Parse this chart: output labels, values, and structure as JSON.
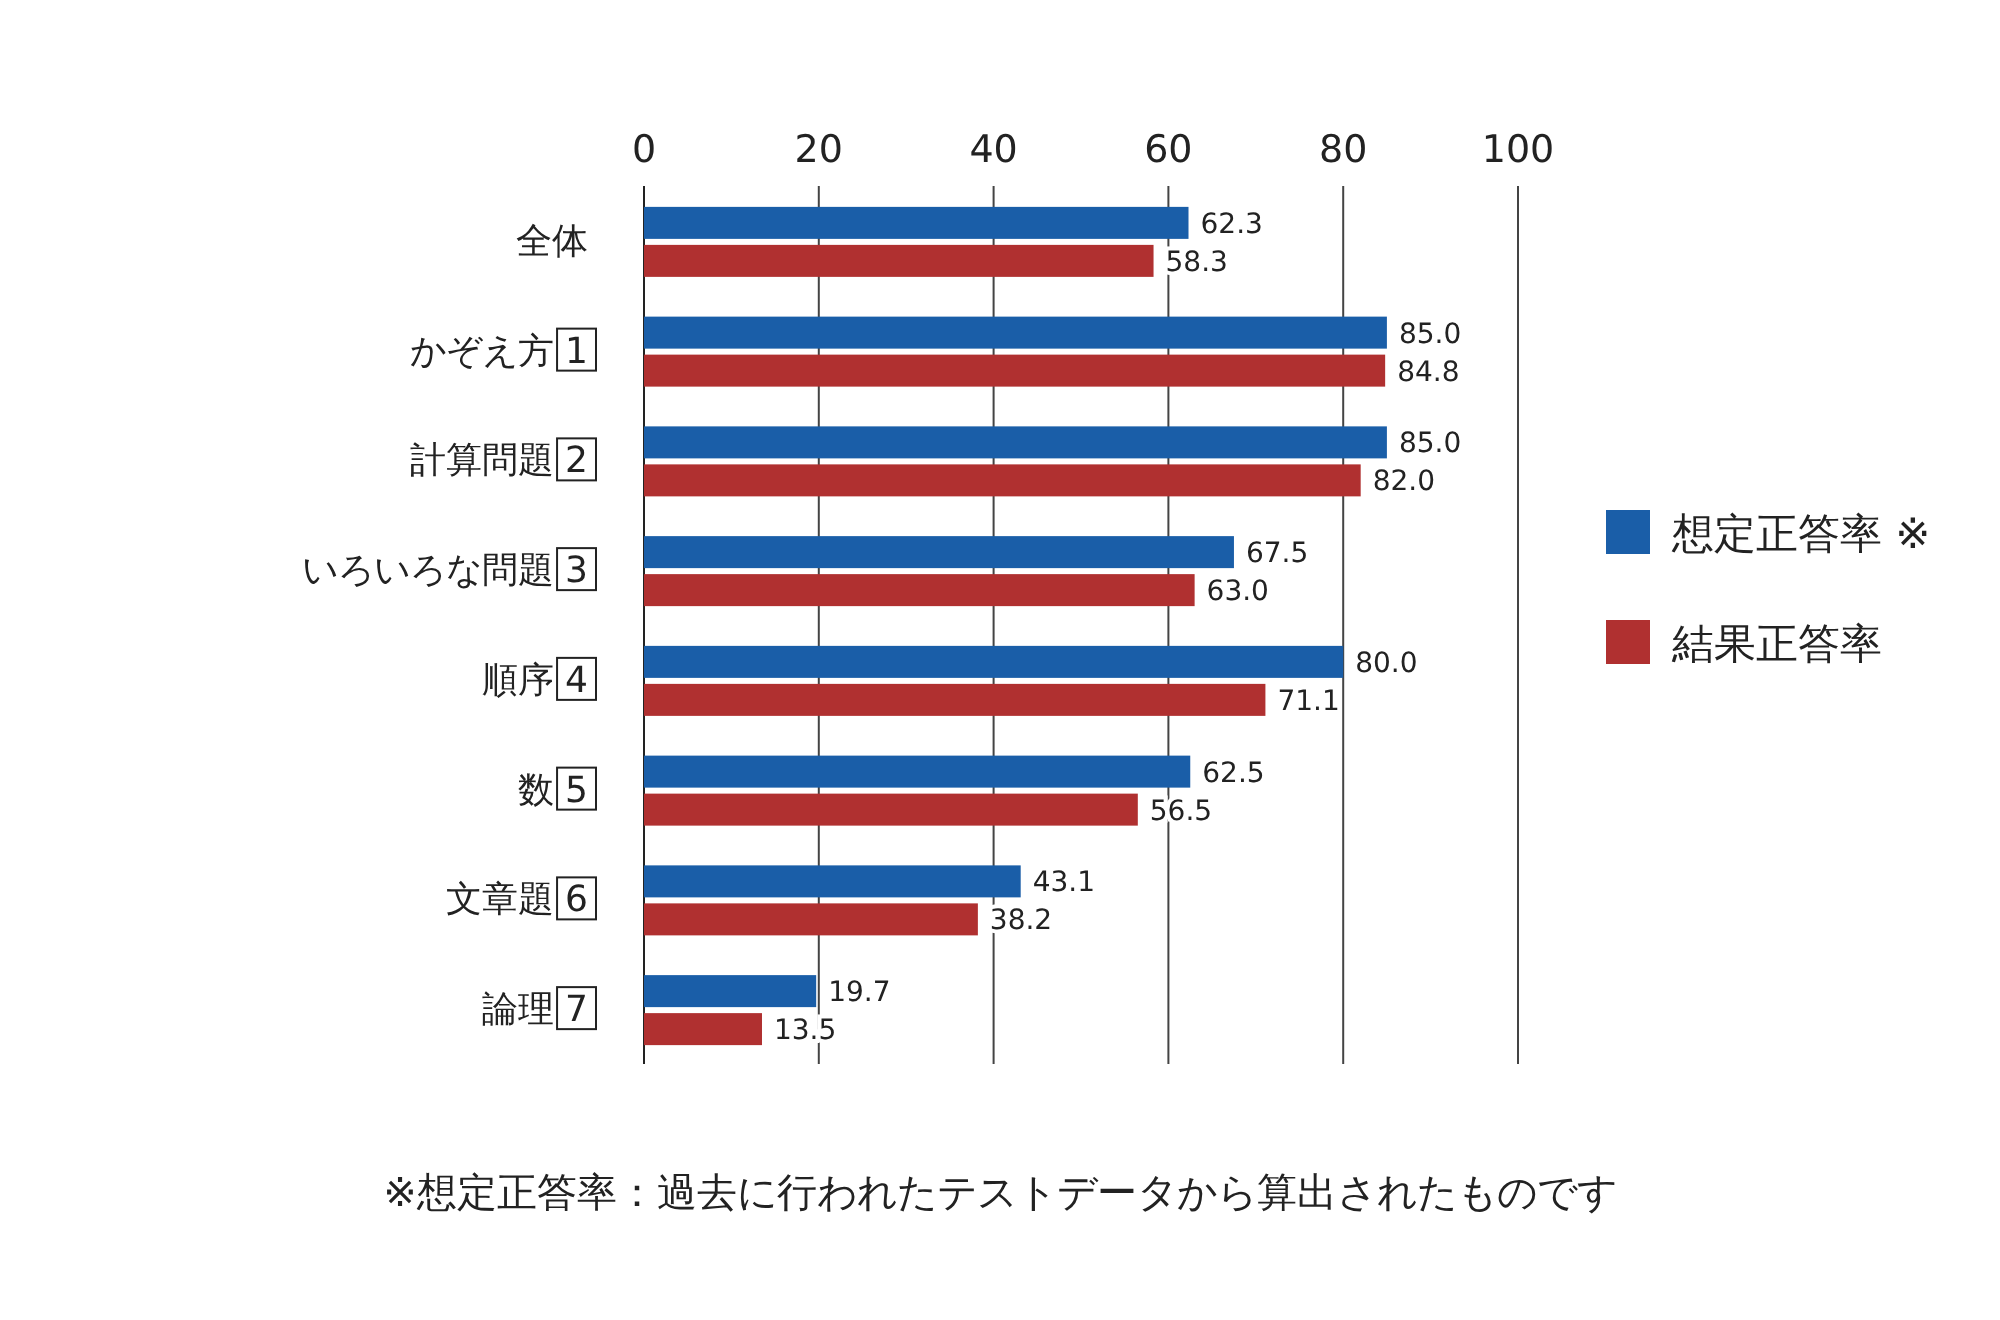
{
  "chart_data": {
    "type": "bar",
    "orientation": "horizontal",
    "categories": [
      "全体",
      "かぞえ方 1",
      "計算問題 2",
      "いろいろな問題 3",
      "順序 4",
      "数 5",
      "文章題 6",
      "論理 7"
    ],
    "series": [
      {
        "name": "想定正答率 ※",
        "color": "#1a5ea8",
        "values": [
          62.3,
          85.0,
          85.0,
          67.5,
          80.0,
          62.5,
          43.1,
          19.7
        ],
        "value_labels": [
          "62.3",
          "85.0",
          "85.0",
          "67.5",
          "80.0",
          "62.5",
          "43.1",
          "19.7"
        ]
      },
      {
        "name": "結果正答率",
        "color": "#b03030",
        "values": [
          58.3,
          84.8,
          82.0,
          63.0,
          71.1,
          56.5,
          38.2,
          13.5
        ],
        "value_labels": [
          "58.3",
          "84.8",
          "82.0",
          "63.0",
          "71.1",
          "56.5",
          "38.2",
          "13.5"
        ]
      }
    ],
    "xlim": [
      0,
      100
    ],
    "xticks": [
      0,
      20,
      40,
      60,
      80,
      100
    ],
    "grid": "x",
    "legend": "right",
    "annotations": [
      "※想定正答率：過去に行われたテストデータから算出されたものです"
    ]
  }
}
